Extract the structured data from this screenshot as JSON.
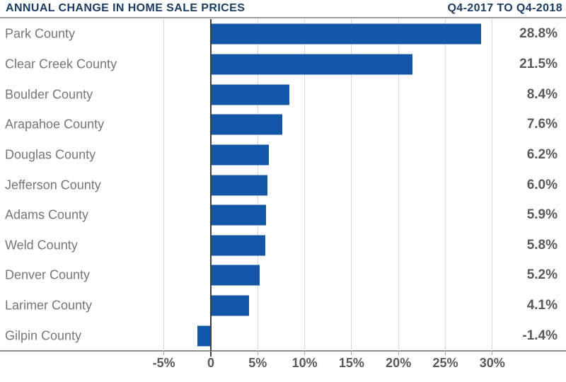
{
  "header": {
    "title": "ANNUAL CHANGE IN HOME SALE PRICES",
    "period": "Q4-2017 TO Q4-2018"
  },
  "colors": {
    "bar": "#1457a8",
    "title": "#1d3c61",
    "category_label": "#75767a",
    "value_label": "#58595b",
    "gridline": "#d8d8d8",
    "zero_line": "#3f3f3f",
    "axis_line": "#8e8e8e"
  },
  "chart_data": {
    "type": "bar",
    "orientation": "horizontal",
    "title": "ANNUAL CHANGE IN HOME SALE PRICES",
    "subtitle": "Q4-2017 TO Q4-2018",
    "categories": [
      "Park County",
      "Clear Creek County",
      "Boulder County",
      "Arapahoe County",
      "Douglas County",
      "Jefferson County",
      "Adams County",
      "Weld County",
      "Denver County",
      "Larimer County",
      "Gilpin County"
    ],
    "values": [
      28.8,
      21.5,
      8.4,
      7.6,
      6.2,
      6.0,
      5.9,
      5.8,
      5.2,
      4.1,
      -1.4
    ],
    "value_labels": [
      "28.8%",
      "21.5%",
      "8.4%",
      "7.6%",
      "6.2%",
      "6.0%",
      "5.9%",
      "5.8%",
      "5.2%",
      "4.1%",
      "-1.4%"
    ],
    "xlabel": "",
    "ylabel": "",
    "x_ticks": [
      {
        "value": -5,
        "label": "-5%"
      },
      {
        "value": 0,
        "label": "0"
      },
      {
        "value": 5,
        "label": "5%"
      },
      {
        "value": 10,
        "label": "10%"
      },
      {
        "value": 15,
        "label": "15%"
      },
      {
        "value": 20,
        "label": "20%"
      },
      {
        "value": 25,
        "label": "25%"
      },
      {
        "value": 30,
        "label": "30%"
      }
    ],
    "xlim": [
      -22.5,
      37.9
    ],
    "grid": "vertical-only",
    "value_label_position": "right-margin",
    "legend": "none"
  }
}
